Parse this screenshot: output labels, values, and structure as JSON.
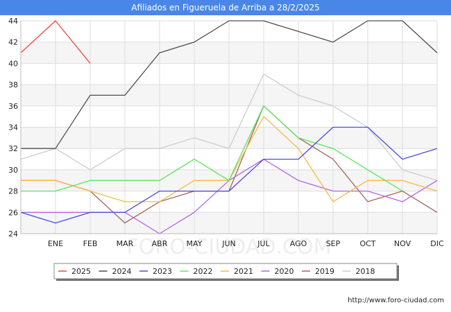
{
  "chart_data": {
    "type": "line",
    "title": "Afiliados en Figueruela de Arriba a 28/2/2025",
    "xlabel": "",
    "ylabel": "",
    "categories": [
      "",
      "ENE",
      "FEB",
      "MAR",
      "ABR",
      "MAY",
      "JUN",
      "JUL",
      "AGO",
      "SEP",
      "OCT",
      "NOV",
      "DIC"
    ],
    "ylim": [
      24,
      44
    ],
    "yticks": [
      24,
      26,
      28,
      30,
      32,
      34,
      36,
      38,
      40,
      42,
      44
    ],
    "grid": true,
    "legend_position": "bottom",
    "series": [
      {
        "name": "2025",
        "color": "#f0463c",
        "values": [
          41,
          44,
          40,
          null,
          null,
          null,
          null,
          null,
          null,
          null,
          null,
          null,
          null
        ]
      },
      {
        "name": "2024",
        "color": "#4d4d4d",
        "values": [
          32,
          32,
          37,
          37,
          41,
          42,
          44,
          44,
          43,
          42,
          44,
          44,
          41
        ]
      },
      {
        "name": "2023",
        "color": "#4b4bdc",
        "values": [
          26,
          25,
          26,
          26,
          28,
          28,
          28,
          31,
          31,
          34,
          34,
          31,
          32
        ]
      },
      {
        "name": "2022",
        "color": "#5ae65a",
        "values": [
          28,
          28,
          29,
          29,
          29,
          31,
          29,
          36,
          33,
          32,
          30,
          28,
          null
        ]
      },
      {
        "name": "2021",
        "color": "#f5b946",
        "values": [
          29,
          29,
          28,
          27,
          27,
          29,
          29,
          35,
          32,
          27,
          29,
          29,
          28
        ]
      },
      {
        "name": "2020",
        "color": "#b464e6",
        "values": [
          26,
          26,
          26,
          26,
          24,
          26,
          29,
          31,
          29,
          28,
          28,
          27,
          29
        ]
      },
      {
        "name": "2019",
        "color": "#a5645a",
        "values": [
          29,
          29,
          28,
          25,
          27,
          28,
          28,
          36,
          33,
          31,
          27,
          28,
          26
        ]
      },
      {
        "name": "2018",
        "color": "#cdcdcd",
        "values": [
          31,
          32,
          30,
          32,
          32,
          33,
          32,
          39,
          37,
          36,
          34,
          30,
          29
        ]
      }
    ]
  },
  "watermark": "FORO-CIUDAD.COM",
  "footer_url": "http://www.foro-ciudad.com"
}
